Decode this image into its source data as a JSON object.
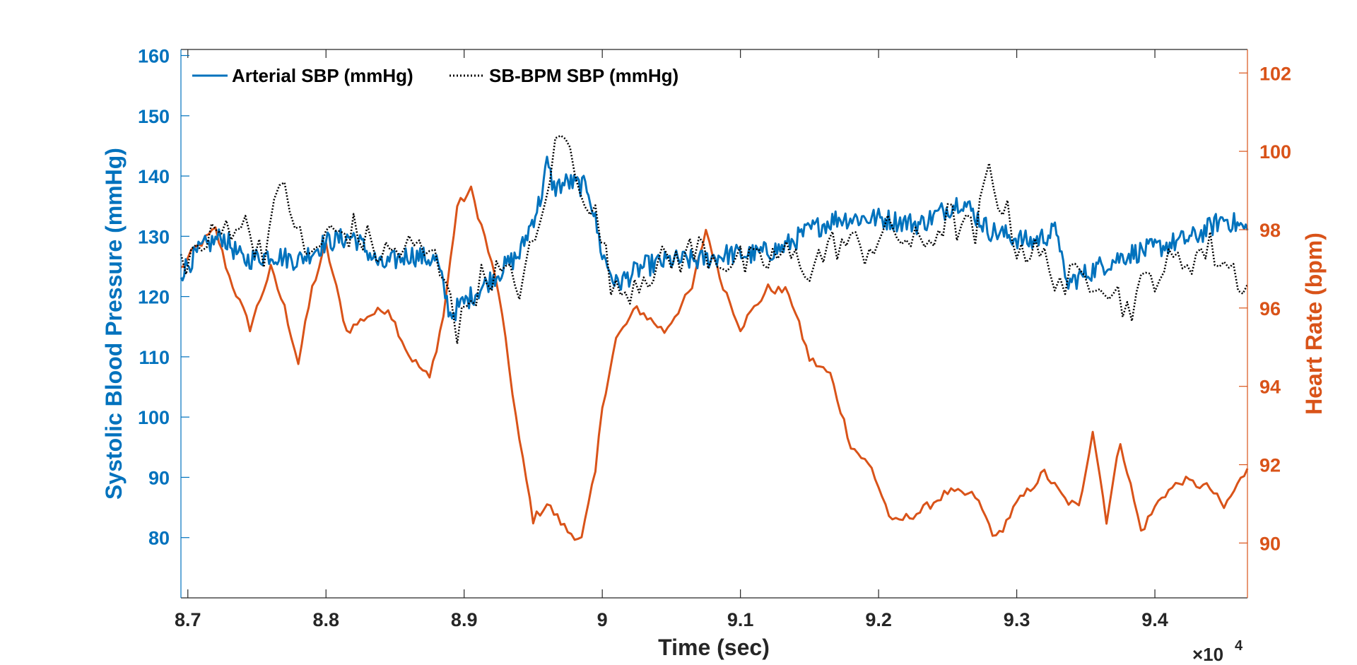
{
  "chart_data": {
    "type": "line",
    "title": "",
    "xlabel": "Time (sec)",
    "x_exponent_label": "×10",
    "x_exponent_power": "4",
    "ylabel_left": "Systolic Blood Pressure (mmHg)",
    "ylabel_right": "Heart Rate (bpm)",
    "xlim": [
      8.695,
      9.467
    ],
    "ylim_left": [
      70,
      161
    ],
    "ylim_right": [
      88.6,
      102.6
    ],
    "x_ticks": [
      8.7,
      8.8,
      8.9,
      9.0,
      9.1,
      9.2,
      9.3,
      9.4
    ],
    "x_tick_labels": [
      "8.7",
      "8.8",
      "8.9",
      "9",
      "9.1",
      "9.2",
      "9.3",
      "9.4"
    ],
    "y_left_ticks": [
      80,
      90,
      100,
      110,
      120,
      130,
      140,
      150,
      160
    ],
    "y_left_tick_labels": [
      "80",
      "90",
      "100",
      "110",
      "120",
      "130",
      "140",
      "150",
      "160"
    ],
    "y_right_ticks": [
      90,
      92,
      94,
      96,
      98,
      100,
      102
    ],
    "y_right_tick_labels": [
      "90",
      "92",
      "94",
      "96",
      "98",
      "100",
      "102"
    ],
    "legend_position": "top-left",
    "colors": {
      "left_axis": "#0072BD",
      "right_axis": "#D95319",
      "arterial": "#0072BD",
      "sbbpm": "#000000",
      "heart_rate": "#D95319",
      "x_axis": "#262626"
    },
    "series": [
      {
        "name": "Arterial SBP (mmHg)",
        "axis": "left",
        "style": "solid",
        "x": [
          8.695,
          8.71,
          8.725,
          8.74,
          8.76,
          8.78,
          8.8,
          8.82,
          8.84,
          8.86,
          8.88,
          8.89,
          8.9,
          8.92,
          8.94,
          8.955,
          8.96,
          8.965,
          8.975,
          8.99,
          9.0,
          9.01,
          9.03,
          9.05,
          9.07,
          9.09,
          9.11,
          9.13,
          9.15,
          9.17,
          9.2,
          9.23,
          9.26,
          9.28,
          9.31,
          9.33,
          9.335,
          9.36,
          9.38,
          9.4,
          9.43,
          9.45,
          9.467
        ],
        "y": [
          124,
          128,
          130,
          126,
          127,
          126,
          129,
          130,
          125,
          127,
          126,
          117,
          119,
          123,
          127,
          136,
          142,
          138,
          139,
          138,
          127,
          122,
          125,
          126,
          126,
          127,
          127,
          128,
          131,
          133,
          133,
          132,
          136,
          131,
          129,
          131,
          122,
          125,
          127,
          128,
          130,
          133,
          131
        ]
      },
      {
        "name": "SB-BPM SBP (mmHg)",
        "axis": "left",
        "style": "dotted",
        "x": [
          8.695,
          8.71,
          8.735,
          8.755,
          8.77,
          8.785,
          8.8,
          8.82,
          8.84,
          8.86,
          8.875,
          8.89,
          8.895,
          8.905,
          8.92,
          8.94,
          8.955,
          8.962,
          8.97,
          8.98,
          8.995,
          9.01,
          9.03,
          9.05,
          9.07,
          9.09,
          9.11,
          9.13,
          9.15,
          9.17,
          9.19,
          9.21,
          9.23,
          9.25,
          9.27,
          9.28,
          9.3,
          9.32,
          9.335,
          9.36,
          9.38,
          9.4,
          9.42,
          9.44,
          9.467
        ],
        "y": [
          126,
          128,
          133,
          128,
          139,
          126,
          130,
          131,
          127,
          128,
          127,
          123,
          113,
          121,
          124,
          122,
          131,
          141,
          147,
          142,
          133,
          120,
          124,
          126,
          128,
          126,
          125,
          127,
          125,
          129,
          128,
          131,
          128,
          133,
          130,
          141,
          129,
          126,
          122,
          124,
          118,
          124,
          126,
          128,
          122
        ]
      },
      {
        "name": "Heart Rate",
        "axis": "right",
        "style": "solid",
        "x": [
          8.695,
          8.705,
          8.72,
          8.73,
          8.745,
          8.76,
          8.77,
          8.78,
          8.79,
          8.8,
          8.815,
          8.83,
          8.845,
          8.86,
          8.875,
          8.885,
          8.895,
          8.905,
          8.915,
          8.925,
          8.94,
          8.95,
          8.96,
          8.975,
          8.985,
          8.995,
          9.0,
          9.01,
          9.025,
          9.045,
          9.065,
          9.075,
          9.085,
          9.1,
          9.12,
          9.135,
          9.15,
          9.165,
          9.18,
          9.195,
          9.21,
          9.23,
          9.25,
          9.27,
          9.285,
          9.3,
          9.32,
          9.335,
          9.345,
          9.355,
          9.365,
          9.375,
          9.39,
          9.405,
          9.42,
          9.44,
          9.45,
          9.467
        ],
        "y": [
          97,
          97.5,
          98,
          96.8,
          95.5,
          97,
          96,
          94.6,
          96.5,
          97.6,
          95.4,
          95.8,
          96,
          94.8,
          94.2,
          95.8,
          98.6,
          99,
          97.8,
          96.4,
          92.6,
          90.6,
          91,
          90.3,
          90.1,
          91.8,
          93.5,
          95.2,
          96,
          95.4,
          96.5,
          98,
          96.8,
          95.5,
          96.5,
          96.4,
          94.7,
          94.3,
          92.5,
          91.9,
          90.5,
          90.8,
          91.3,
          91.2,
          90.1,
          91,
          91.8,
          91.1,
          90.9,
          92.9,
          90.6,
          92.6,
          90.3,
          91.2,
          91.6,
          91.4,
          90.9,
          91.9
        ]
      }
    ]
  }
}
